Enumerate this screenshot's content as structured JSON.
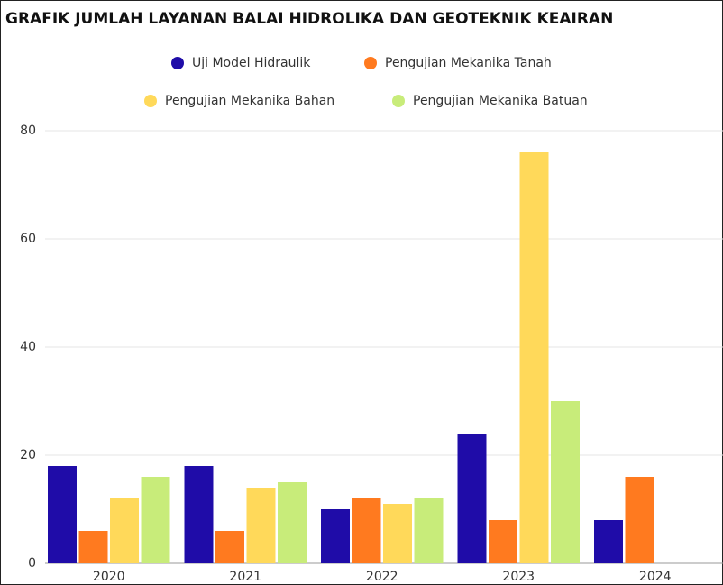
{
  "chart_data": {
    "type": "bar",
    "title": "GRAFIK JUMLAH  LAYANAN BALAI HIDROLIKA DAN GEOTEKNIK KEAIRAN",
    "categories": [
      "2020",
      "2021",
      "2022",
      "2023",
      "2024"
    ],
    "series": [
      {
        "name": "Uji Model Hidraulik",
        "color": "#1f0ca8",
        "values": [
          18,
          18,
          10,
          24,
          8
        ]
      },
      {
        "name": "Pengujian Mekanika Tanah",
        "color": "#ff7a1f",
        "values": [
          6,
          6,
          12,
          8,
          16
        ]
      },
      {
        "name": "Pengujian Mekanika Bahan",
        "color": "#ffd95a",
        "values": [
          12,
          14,
          11,
          76,
          null
        ]
      },
      {
        "name": "Pengujian Mekanika Batuan",
        "color": "#c8ec7a",
        "values": [
          16,
          15,
          12,
          30,
          null
        ]
      }
    ],
    "ylim": [
      0,
      80
    ],
    "yticks": [
      0,
      20,
      40,
      60,
      80
    ],
    "grid": true
  }
}
